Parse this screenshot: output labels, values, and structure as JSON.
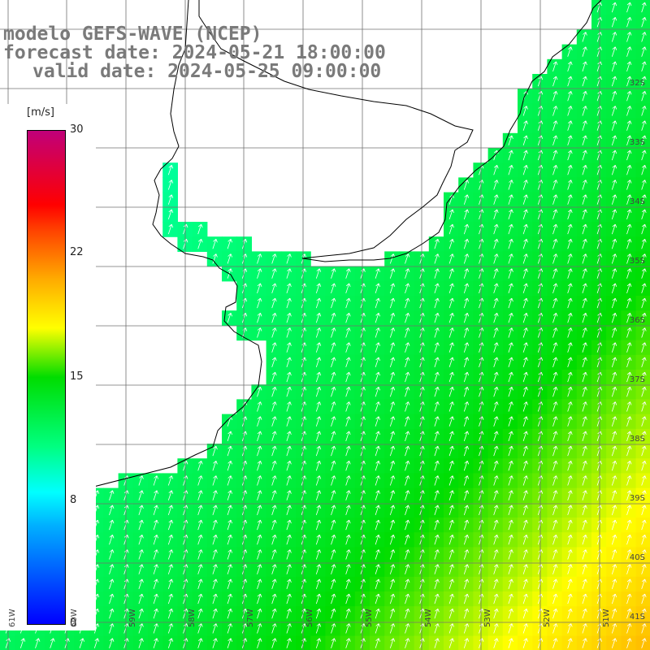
{
  "header": {
    "line1": "modelo GEFS-WAVE (NCEP)",
    "line2": "forecast date: 2024-05-21 18:00:00",
    "line3": "valid date: 2024-05-25 09:00:00"
  },
  "colorbar": {
    "units": "[m/s]",
    "ticks": [
      "30",
      "22",
      "15",
      "8",
      "0"
    ],
    "range": [
      0,
      30
    ]
  },
  "axes": {
    "lat_labels": [
      "32S",
      "33S",
      "34S",
      "35S",
      "36S",
      "37S",
      "38S",
      "39S",
      "40S",
      "41S"
    ],
    "lon_labels": [
      "61W",
      "60W",
      "59W",
      "58W",
      "57W",
      "56W",
      "55W",
      "54W",
      "53W",
      "52W",
      "51W"
    ]
  },
  "colors": {
    "land": "#ffffff",
    "grid": "#707070",
    "coast": "#000000",
    "title": "#7a7a7a",
    "arrow": "#ffffff"
  }
}
